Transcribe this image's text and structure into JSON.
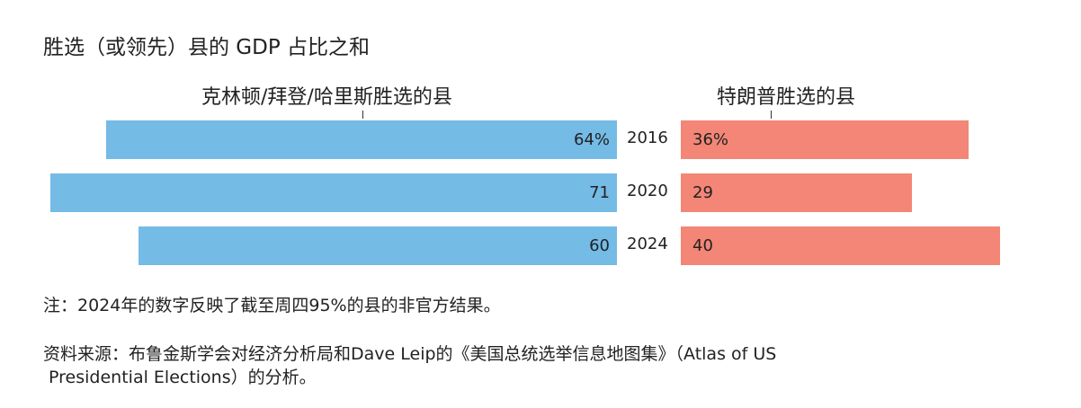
{
  "chart_data": {
    "type": "bar",
    "title": "胜选（或领先）县的 GDP 占比之和",
    "categories": [
      "2016",
      "2020",
      "2024"
    ],
    "series": [
      {
        "name": "克林顿/拜登/哈里斯胜选的县",
        "color": "#74bbe6",
        "values": [
          64,
          71,
          60
        ],
        "labels": [
          "64%",
          "71",
          "60"
        ]
      },
      {
        "name": "特朗普胜选的县",
        "color": "#f38676",
        "values": [
          36,
          29,
          40
        ],
        "labels": [
          "36%",
          "29",
          "40"
        ]
      }
    ],
    "xlabel": "",
    "ylabel": "",
    "xlim": [
      0,
      100
    ]
  },
  "notes": {
    "note": "注：2024年的数字反映了截至周四95%的县的非官方结果。",
    "source_line1": "资料来源：布鲁金斯学会对经济分析局和Dave Leip的《美国总统选举信息地图集》（Atlas of US",
    "source_line2": " Presidential Elections）的分析。"
  }
}
